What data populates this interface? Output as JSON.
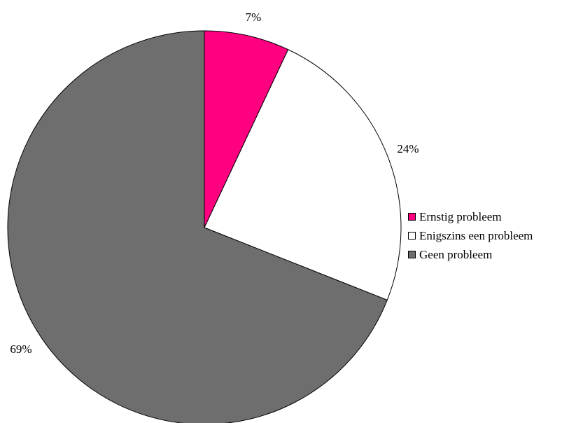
{
  "chart_data": {
    "type": "pie",
    "categories": [
      "Ernstig probleem",
      "Enigszins een probleem",
      "Geen probleem"
    ],
    "values": [
      7,
      24,
      69
    ],
    "data_labels": [
      "7%",
      "24%",
      "69%"
    ],
    "colors": [
      "#ff0080",
      "#ffffff",
      "#6e6e6e"
    ],
    "start_angle": "12 o'clock, clockwise",
    "legend_position": "right"
  }
}
